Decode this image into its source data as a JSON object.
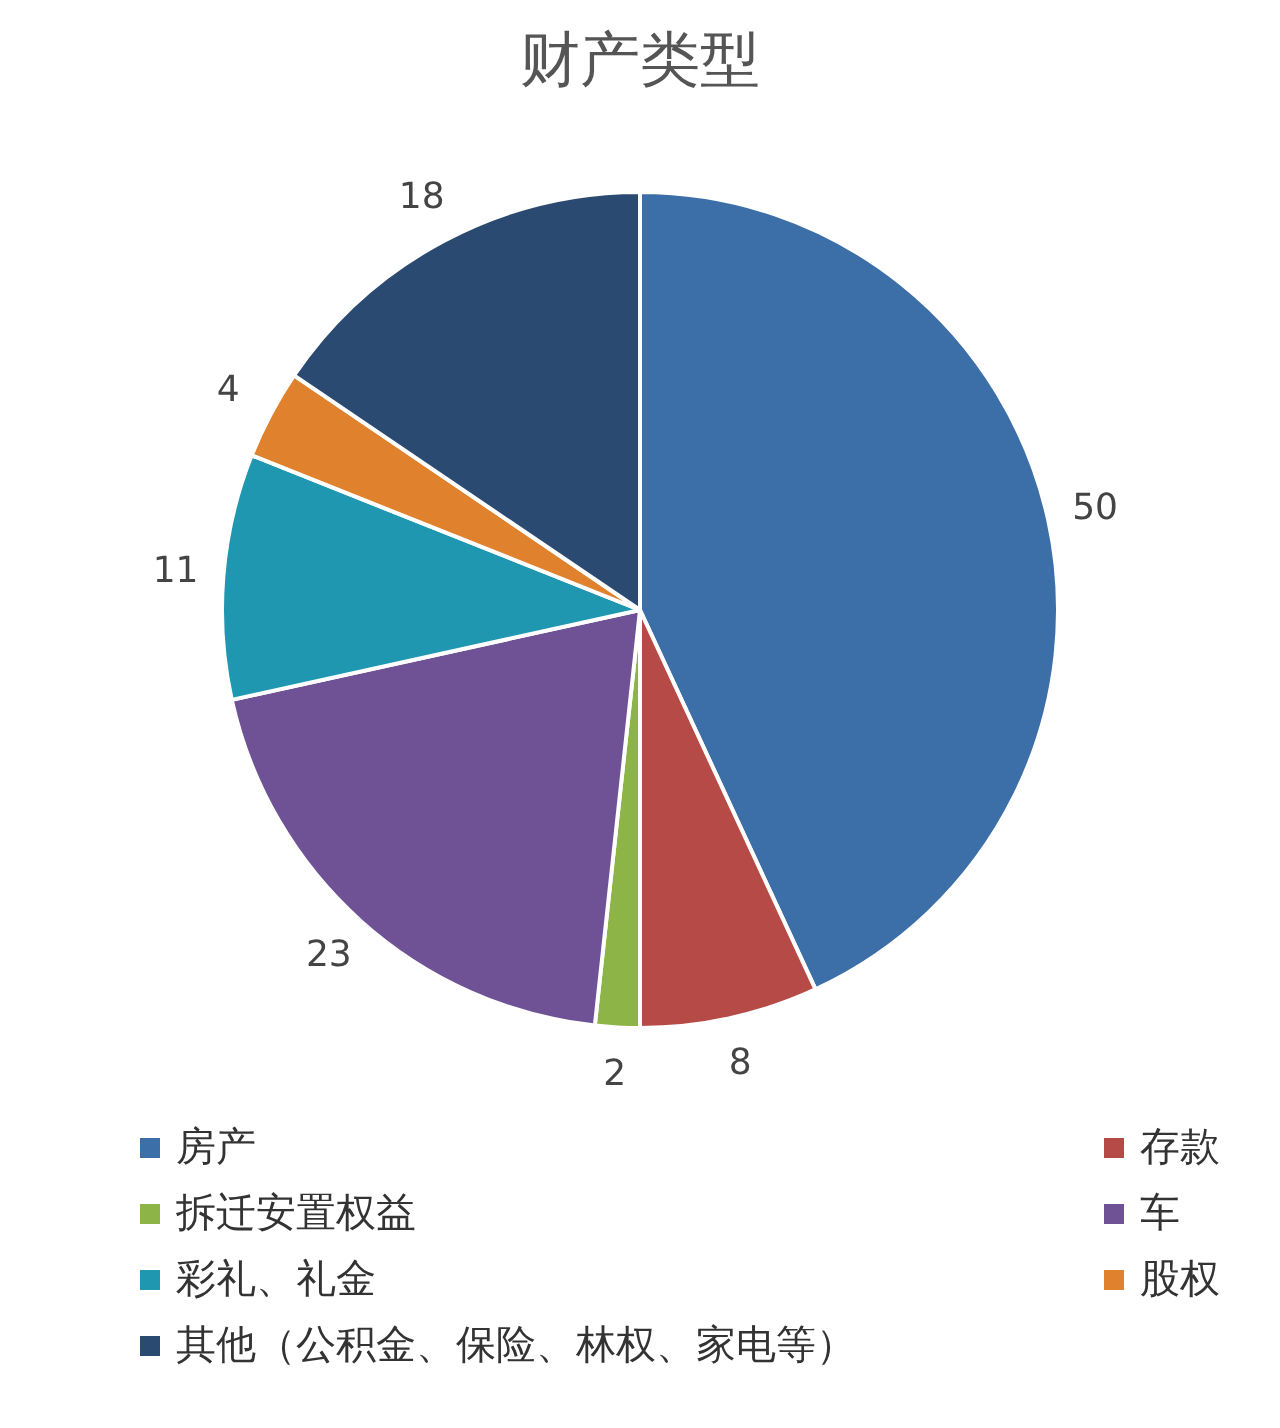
{
  "chart_data": {
    "type": "pie",
    "title": "财产类型",
    "categories": [
      "房产",
      "存款",
      "拆迁安置权益",
      "车",
      "彩礼、礼金",
      "股权",
      "其他（公积金、保险、林权、家电等）"
    ],
    "values": [
      50,
      8,
      2,
      23,
      11,
      4,
      18
    ],
    "colors": [
      "#3c6ea8",
      "#b54a47",
      "#8db446",
      "#6f5296",
      "#1f97b0",
      "#e0822d",
      "#2a4a72"
    ],
    "data_labels": true,
    "legend": "bottom"
  }
}
